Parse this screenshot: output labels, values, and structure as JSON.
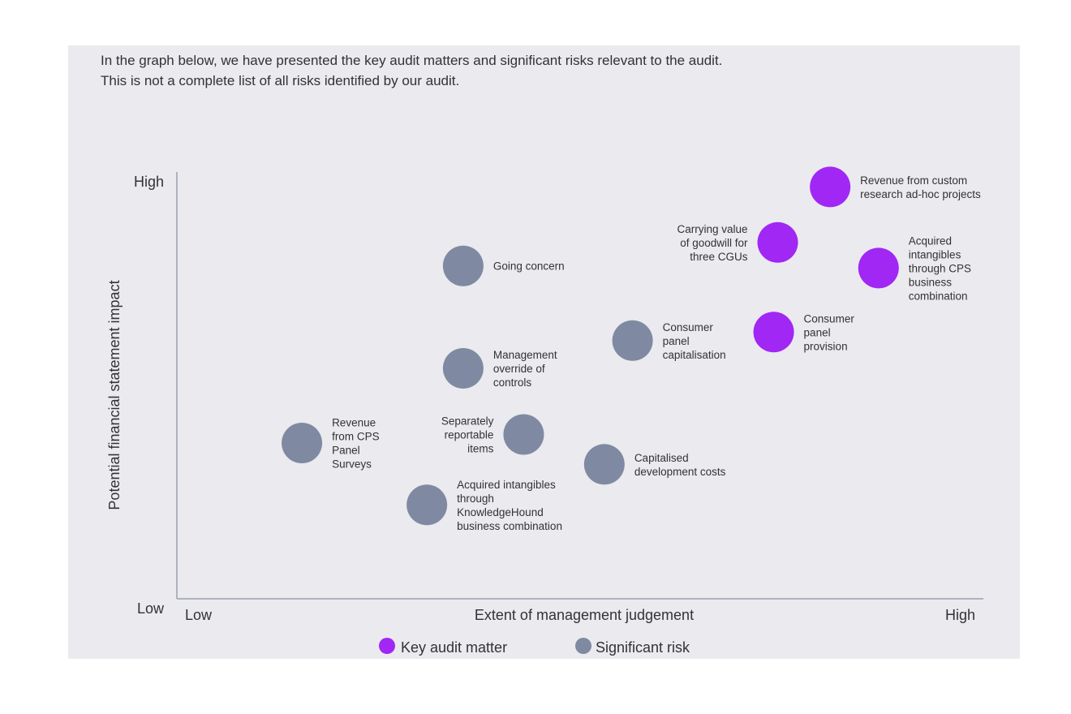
{
  "intro": {
    "line1": "In the graph below, we have presented the key audit matters and significant risks relevant to the audit.",
    "line2": "This is not a complete list of all risks identified by our audit."
  },
  "colors": {
    "key_audit_matter": "#a127f5",
    "significant_risk": "#7f8aa2",
    "axis": "#9aa0ad",
    "panel": "#eaeaef"
  },
  "chart_data": {
    "type": "scatter",
    "xlabel": "Extent of management judgement",
    "ylabel": "Potential financial statement impact",
    "x_low_label": "Low",
    "x_high_label": "High",
    "y_low_label": "Low",
    "y_high_label": "High",
    "xlim": [
      0,
      100
    ],
    "ylim": [
      0,
      100
    ],
    "legend": [
      {
        "key": "kam",
        "label": "Key audit matter"
      },
      {
        "key": "sr",
        "label": "Significant risk"
      }
    ],
    "legend_position": "bottom",
    "points": [
      {
        "lines": [
          "Revenue from custom",
          "research ad-hoc projects"
        ],
        "category": "kam",
        "x": 81,
        "y": 96.5,
        "label_side": "right"
      },
      {
        "lines": [
          "Carrying value",
          "of goodwill for",
          "three CGUs"
        ],
        "category": "kam",
        "x": 74.5,
        "y": 83.5,
        "label_side": "left"
      },
      {
        "lines": [
          "Acquired",
          "intangibles",
          "through CPS",
          "business",
          "combination"
        ],
        "category": "kam",
        "x": 87,
        "y": 77.5,
        "label_side": "right"
      },
      {
        "lines": [
          "Consumer",
          "panel",
          "provision"
        ],
        "category": "kam",
        "x": 74,
        "y": 62.5,
        "label_side": "right"
      },
      {
        "lines": [
          "Going concern"
        ],
        "category": "sr",
        "x": 35.5,
        "y": 78,
        "label_side": "right"
      },
      {
        "lines": [
          "Consumer",
          "panel",
          "capitalisation"
        ],
        "category": "sr",
        "x": 56.5,
        "y": 60.5,
        "label_side": "right"
      },
      {
        "lines": [
          "Management",
          "override of",
          "controls"
        ],
        "category": "sr",
        "x": 35.5,
        "y": 54,
        "label_side": "right"
      },
      {
        "lines": [
          "Separately",
          "reportable",
          "items"
        ],
        "category": "sr",
        "x": 43,
        "y": 38.5,
        "label_side": "left"
      },
      {
        "lines": [
          "Revenue",
          "from CPS",
          "Panel",
          "Surveys"
        ],
        "category": "sr",
        "x": 15.5,
        "y": 36.5,
        "label_side": "right"
      },
      {
        "lines": [
          "Capitalised",
          "development costs"
        ],
        "category": "sr",
        "x": 53,
        "y": 31.5,
        "label_side": "right"
      },
      {
        "lines": [
          "Acquired intangibles",
          "through",
          "KnowledgeHound",
          "business combination"
        ],
        "category": "sr",
        "x": 31,
        "y": 22,
        "label_side": "right"
      }
    ]
  }
}
